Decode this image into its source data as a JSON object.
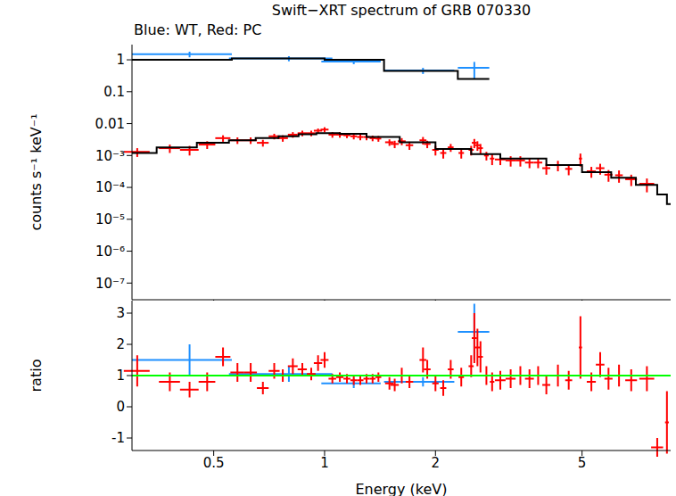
{
  "chart_data": [
    {
      "type": "scatter",
      "title": "Swift−XRT spectrum of GRB 070330",
      "subtitle": "Blue: WT, Red: PC",
      "y_label": "counts s⁻¹ keV⁻¹",
      "log": true,
      "tick_labels": "y",
      "xlim": [
        0.3,
        8.7
      ],
      "xticks": [
        0.5,
        1,
        2,
        5
      ],
      "ylim": [
        3e-08,
        3
      ],
      "yticks": [
        {
          "value": 1e-07,
          "label": "10⁻⁷"
        },
        {
          "value": 1e-06,
          "label": "10⁻⁶"
        },
        {
          "value": 1e-05,
          "label": "10⁻⁵"
        },
        {
          "value": 0.0001,
          "label": "10⁻⁴"
        },
        {
          "value": 0.001,
          "label": "10⁻³"
        },
        0.01,
        0.1,
        1
      ],
      "series": [
        {
          "name": "WT",
          "color": "#1e90ff",
          "marker": "none",
          "x": [
            0.43,
            0.8,
            1.2,
            1.85,
            2.55
          ],
          "x_err": [
            0.13,
            0.25,
            0.22,
            0.4,
            0.25
          ],
          "values": [
            1.5,
            1.1,
            0.88,
            0.46,
            0.56
          ],
          "y_err": [
            0.3,
            0.2,
            0.15,
            0.1,
            0.3
          ]
        },
        {
          "name": "PC",
          "color": "#ff0000",
          "marker": "none",
          "x": [
            0.31,
            0.38,
            0.43,
            0.48,
            0.53,
            0.58,
            0.63,
            0.68,
            0.73,
            0.77,
            0.82,
            0.87,
            0.92,
            0.96,
            1.0,
            1.05,
            1.1,
            1.15,
            1.2,
            1.25,
            1.3,
            1.35,
            1.4,
            1.5,
            1.55,
            1.62,
            1.7,
            1.85,
            1.9,
            2.0,
            2.1,
            2.2,
            2.35,
            2.5,
            2.55,
            2.6,
            2.65,
            2.75,
            2.85,
            3.0,
            3.2,
            3.4,
            3.6,
            3.8,
            4.0,
            4.3,
            4.6,
            4.95,
            5.3,
            5.6,
            5.9,
            6.3,
            6.8,
            7.5,
            8.0,
            8.5
          ],
          "x_err": [
            0.025,
            0.025,
            0.025,
            0.025,
            0.025,
            0.025,
            0.025,
            0.025,
            0.025,
            0.025,
            0.025,
            0.025,
            0.025,
            0.025,
            0.025,
            0.025,
            0.025,
            0.025,
            0.025,
            0.025,
            0.025,
            0.025,
            0.025,
            0.04,
            0.04,
            0.04,
            0.04,
            0.04,
            0.04,
            0.04,
            0.04,
            0.04,
            0.04,
            0.04,
            0.04,
            0.04,
            0.04,
            0.04,
            0.04,
            0.1,
            0.1,
            0.1,
            0.1,
            0.1,
            0.1,
            0.1,
            0.1,
            0.05,
            0.15,
            0.15,
            0.15,
            0.15,
            0.25,
            0.35,
            0.3,
            0.1
          ],
          "values": [
            0.0013,
            0.0017,
            0.0015,
            0.0022,
            0.0035,
            0.003,
            0.003,
            0.0025,
            0.004,
            0.0035,
            0.0045,
            0.005,
            0.005,
            0.006,
            0.0065,
            0.0045,
            0.0045,
            0.0043,
            0.004,
            0.0038,
            0.0038,
            0.0035,
            0.0034,
            0.0026,
            0.0023,
            0.0028,
            0.0021,
            0.003,
            0.0023,
            0.0015,
            0.0012,
            0.0018,
            0.0012,
            0.0015,
            0.0025,
            0.0021,
            0.0017,
            0.001,
            0.0008,
            0.00075,
            0.0007,
            0.0007,
            0.0006,
            0.0006,
            0.0004,
            0.0005,
            0.00038,
            0.0008,
            0.00032,
            0.0004,
            0.00025,
            0.00024,
            0.00018,
            0.00013,
            null,
            null
          ],
          "y_err": [
            0.0004,
            0.0005,
            0.0005,
            0.0006,
            0.0008,
            0.0007,
            0.0007,
            0.0006,
            0.0008,
            0.0008,
            0.0009,
            0.001,
            0.001,
            0.001,
            0.0012,
            0.0009,
            0.0009,
            0.0008,
            0.0008,
            0.0008,
            0.0008,
            0.0007,
            0.0007,
            0.0006,
            0.0006,
            0.0007,
            0.0006,
            0.0008,
            0.0006,
            0.0005,
            0.0004,
            0.0005,
            0.0004,
            0.0005,
            0.0008,
            0.0007,
            0.0006,
            0.0003,
            0.0003,
            0.00025,
            0.00025,
            0.00025,
            0.0002,
            0.0002,
            0.00015,
            0.00018,
            0.00014,
            0.00035,
            0.00012,
            0.00015,
            0.0001,
            0.0001,
            7e-05,
            6e-05,
            null,
            null
          ]
        },
        {
          "type": "line",
          "line_style": "steps",
          "color": "#000000",
          "x": [
            0.3,
            0.56,
            1.0,
            1.45,
            2.3,
            2.8
          ],
          "values": [
            1.0,
            1.1,
            1.0,
            0.45,
            0.25,
            0.25
          ]
        },
        {
          "type": "line",
          "line_style": "steps",
          "color": "#000000",
          "x": [
            0.3,
            0.35,
            0.45,
            0.55,
            0.65,
            0.75,
            0.85,
            0.95,
            1.1,
            1.3,
            1.6,
            2.0,
            2.5,
            3.0,
            4.0,
            5.0,
            6.0,
            7.0,
            8.0,
            8.5,
            8.7
          ],
          "values": [
            0.0012,
            0.0018,
            0.0025,
            0.003,
            0.0035,
            0.004,
            0.0046,
            0.005,
            0.0048,
            0.0038,
            0.0026,
            0.0016,
            0.0011,
            0.0008,
            0.0005,
            0.0003,
            0.0002,
            0.00012,
            6e-05,
            3e-05,
            3e-05
          ]
        }
      ]
    },
    {
      "type": "scatter",
      "x_label": "Energy (keV)",
      "y_label": "ratio",
      "log": "x",
      "xlim": [
        0.3,
        8.7
      ],
      "xticks": [
        0.5,
        1,
        2,
        5
      ],
      "ylim": [
        -1.4,
        3.4
      ],
      "yticks": [
        -1,
        0,
        1,
        2,
        3
      ],
      "series": [
        {
          "name": "WT",
          "color": "#1e90ff",
          "marker": "none",
          "x": [
            0.43,
            0.8,
            1.2,
            1.85,
            2.55
          ],
          "x_err": [
            0.13,
            0.25,
            0.22,
            0.4,
            0.25
          ],
          "values": [
            1.5,
            1.05,
            0.75,
            0.8,
            2.4
          ],
          "y_err": [
            0.5,
            0.25,
            0.15,
            0.15,
            0.9
          ]
        },
        {
          "name": "PC",
          "color": "#ff0000",
          "marker": "none",
          "x": [
            0.31,
            0.38,
            0.43,
            0.48,
            0.53,
            0.58,
            0.63,
            0.68,
            0.73,
            0.77,
            0.82,
            0.87,
            0.92,
            0.96,
            1.0,
            1.05,
            1.1,
            1.15,
            1.2,
            1.25,
            1.3,
            1.35,
            1.4,
            1.5,
            1.55,
            1.62,
            1.7,
            1.85,
            1.9,
            2.0,
            2.1,
            2.2,
            2.35,
            2.5,
            2.55,
            2.6,
            2.65,
            2.75,
            2.85,
            3.0,
            3.2,
            3.4,
            3.6,
            3.8,
            4.0,
            4.3,
            4.6,
            4.95,
            5.3,
            5.6,
            5.9,
            6.3,
            6.8,
            7.5,
            8.0,
            8.5
          ],
          "x_err": [
            0.025,
            0.025,
            0.025,
            0.025,
            0.025,
            0.025,
            0.025,
            0.025,
            0.025,
            0.025,
            0.025,
            0.025,
            0.025,
            0.025,
            0.025,
            0.025,
            0.025,
            0.025,
            0.025,
            0.025,
            0.025,
            0.025,
            0.025,
            0.04,
            0.04,
            0.04,
            0.04,
            0.04,
            0.04,
            0.04,
            0.04,
            0.04,
            0.04,
            0.04,
            0.04,
            0.04,
            0.04,
            0.04,
            0.04,
            0.1,
            0.1,
            0.1,
            0.1,
            0.1,
            0.1,
            0.1,
            0.1,
            0.05,
            0.15,
            0.15,
            0.15,
            0.15,
            0.25,
            0.35,
            0.3,
            0.1
          ],
          "values": [
            1.15,
            0.8,
            0.55,
            0.8,
            1.6,
            1.1,
            1.1,
            0.6,
            1.15,
            1.0,
            1.3,
            1.2,
            1.05,
            1.4,
            1.5,
            0.9,
            0.95,
            0.9,
            0.85,
            0.85,
            0.9,
            0.9,
            0.95,
            0.75,
            0.7,
            1.0,
            0.8,
            1.5,
            1.2,
            0.75,
            0.6,
            1.2,
            0.95,
            1.3,
            2.2,
            1.9,
            1.6,
            1.0,
            0.8,
            0.85,
            0.9,
            1.0,
            0.9,
            1.0,
            0.7,
            1.0,
            0.85,
            1.9,
            0.8,
            1.35,
            0.9,
            1.0,
            0.85,
            0.9,
            -1.3,
            -0.5
          ],
          "y_err": [
            0.5,
            0.3,
            0.25,
            0.3,
            0.3,
            0.3,
            0.3,
            0.2,
            0.25,
            0.2,
            0.25,
            0.2,
            0.2,
            0.25,
            0.25,
            0.15,
            0.15,
            0.15,
            0.15,
            0.15,
            0.15,
            0.15,
            0.15,
            0.2,
            0.2,
            0.25,
            0.2,
            0.4,
            0.3,
            0.25,
            0.25,
            0.3,
            0.3,
            0.35,
            0.8,
            0.6,
            0.5,
            0.3,
            0.3,
            0.3,
            0.3,
            0.3,
            0.3,
            0.3,
            0.3,
            0.35,
            0.3,
            1.0,
            0.3,
            0.4,
            0.35,
            0.35,
            0.35,
            0.4,
            0.3,
            1.0
          ]
        },
        {
          "type": "line",
          "line_style": "solid",
          "color": "#00ff00",
          "x": [
            0.3,
            8.7
          ],
          "values": [
            1,
            1
          ]
        }
      ]
    }
  ]
}
